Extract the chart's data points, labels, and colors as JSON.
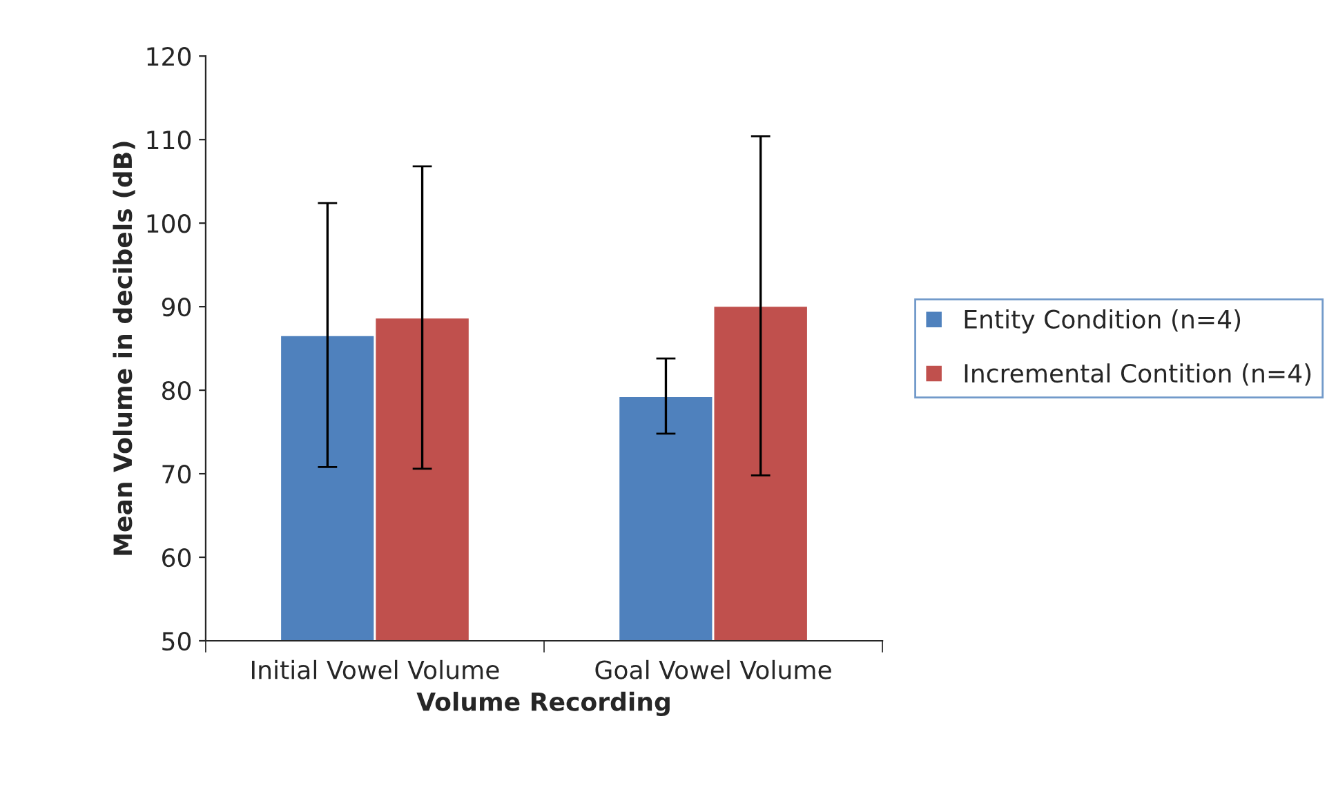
{
  "chart_data": {
    "type": "bar",
    "xlabel": "Volume Recording",
    "ylabel": "Mean Volume in decibels (dB)",
    "categories": [
      "Initial Vowel Volume",
      "Goal Vowel Volume"
    ],
    "series": [
      {
        "name": "Entity Condition (n=4)",
        "color": "#4f81bd",
        "values": [
          86.6,
          79.3
        ],
        "errors": [
          15.8,
          4.5
        ]
      },
      {
        "name": "Incremental Contition (n=4)",
        "color": "#c0504d",
        "values": [
          88.7,
          90.1
        ],
        "errors": [
          18.1,
          20.3
        ]
      }
    ],
    "ylim": [
      50,
      120
    ],
    "yticks": [
      50,
      60,
      70,
      80,
      90,
      100,
      110,
      120
    ],
    "grid": false,
    "legend": "right"
  }
}
